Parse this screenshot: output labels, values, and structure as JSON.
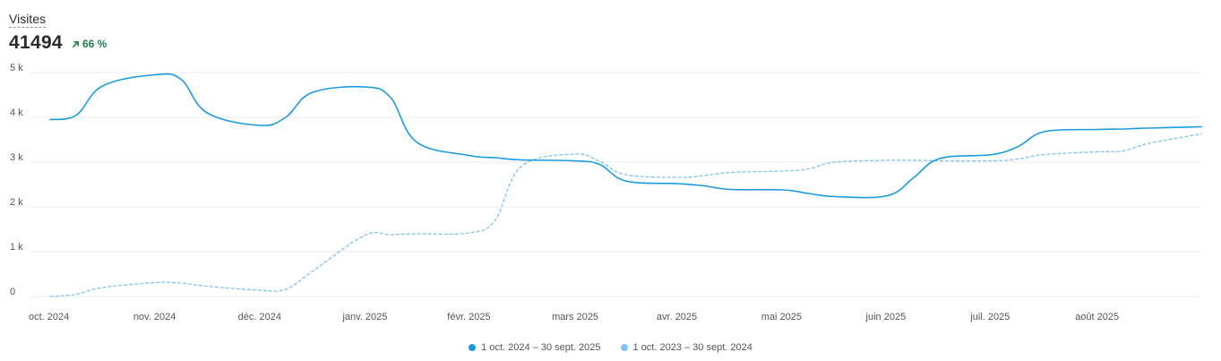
{
  "metric": {
    "title": "Visites",
    "value": "41494",
    "delta": "66 %",
    "delta_color": "#1e7f4f"
  },
  "chart_data": {
    "type": "line",
    "ylim": [
      0,
      5000
    ],
    "yticks": [
      0,
      1000,
      2000,
      3000,
      4000,
      5000
    ],
    "ytick_labels": [
      "0",
      "1 k",
      "2 k",
      "3 k",
      "4 k",
      "5 k"
    ],
    "x_labels": [
      "oct. 2024",
      "nov. 2024",
      "déc. 2024",
      "janv. 2025",
      "févr. 2025",
      "mars 2025",
      "avr. 2025",
      "mai 2025",
      "juin 2025",
      "juil. 2025",
      "août 2025"
    ],
    "grid": true,
    "legend": "bottom-center",
    "series": [
      {
        "name": "1 oct. 2024 – 30 sept. 2025",
        "color": "#1a9be0",
        "style": "solid",
        "x": [
          0,
          0.25,
          0.5,
          1.0,
          1.25,
          1.5,
          2.0,
          2.25,
          2.5,
          3.0,
          3.25,
          3.5,
          4.0,
          4.25,
          4.5,
          5.0,
          5.25,
          5.5,
          6.0,
          6.25,
          6.5,
          7.0,
          7.25,
          7.5,
          8.0,
          8.25,
          8.5,
          9.0,
          9.25,
          9.5,
          10.0,
          10.25,
          10.5,
          11.0
        ],
        "y": [
          3950,
          4050,
          4700,
          4950,
          4850,
          4100,
          3820,
          4000,
          4550,
          4680,
          4450,
          3450,
          3150,
          3100,
          3050,
          3030,
          2950,
          2580,
          2520,
          2470,
          2390,
          2380,
          2300,
          2230,
          2250,
          2650,
          3080,
          3170,
          3350,
          3680,
          3730,
          3740,
          3760,
          3790
        ]
      },
      {
        "name": "1 oct. 2023 – 30 sept. 2024",
        "color": "#7fc4ee",
        "style": "dashed",
        "x": [
          0,
          0.25,
          0.5,
          1.0,
          1.25,
          1.5,
          2.0,
          2.25,
          2.5,
          3.0,
          3.25,
          3.5,
          4.0,
          4.25,
          4.5,
          5.0,
          5.25,
          5.5,
          6.0,
          6.25,
          6.5,
          7.0,
          7.25,
          7.5,
          8.0,
          8.25,
          8.5,
          9.0,
          9.25,
          9.5,
          10.0,
          10.25,
          10.5,
          11.0
        ],
        "y": [
          0,
          50,
          200,
          310,
          300,
          230,
          140,
          160,
          550,
          1360,
          1380,
          1400,
          1420,
          1700,
          2900,
          3180,
          3020,
          2720,
          2660,
          2700,
          2770,
          2800,
          2850,
          3000,
          3040,
          3040,
          3030,
          3030,
          3070,
          3170,
          3230,
          3250,
          3420,
          3630
        ]
      }
    ]
  }
}
